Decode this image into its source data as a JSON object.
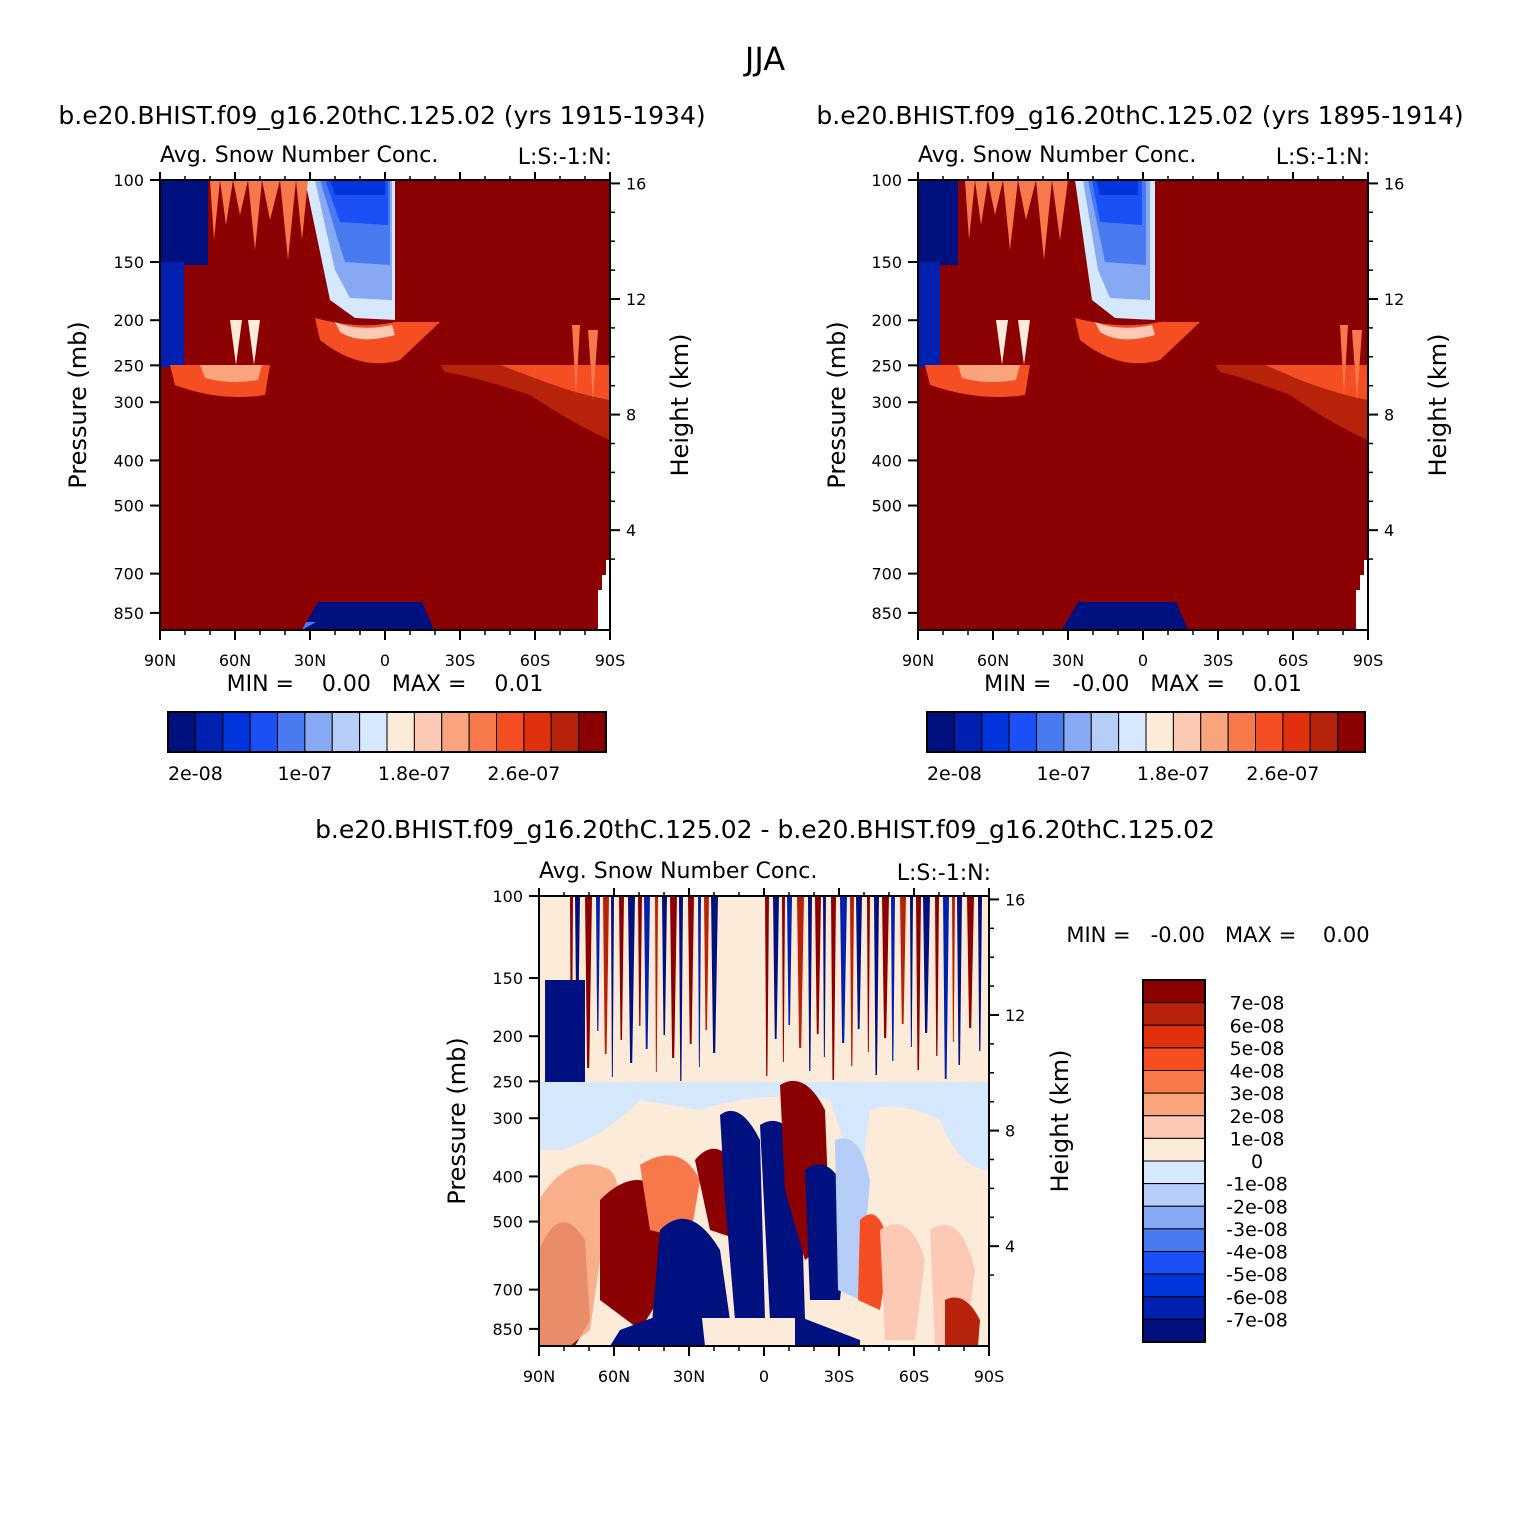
{
  "figure_title": "JJA",
  "colors": {
    "deep_red": "#8b0000",
    "deep_blue": "#00107f",
    "axis": "#000000",
    "background": "#ffffff"
  },
  "chart_data": [
    {
      "type": "heatmap",
      "id": "top-left",
      "case_title": "b.e20.BHIST.f09_g16.20thC.125.02 (yrs 1915-1934)",
      "title": "Avg. Snow Number Conc.",
      "title_right": "L:S:-1:N:",
      "xlabel": "",
      "ylabel": "Pressure (mb)",
      "y2label": "Height (km)",
      "x_ticks": [
        "90N",
        "60N",
        "30N",
        "0",
        "30S",
        "60S",
        "90S"
      ],
      "x_values": [
        90,
        60,
        30,
        0,
        -30,
        -60,
        -90
      ],
      "y_ticks": [
        "100",
        "150",
        "200",
        "250",
        "300",
        "400",
        "500",
        "700",
        "850"
      ],
      "y_values": [
        100,
        150,
        200,
        250,
        300,
        400,
        500,
        700,
        850
      ],
      "ylim": [
        100,
        925
      ],
      "y2_ticks": [
        "4",
        "8",
        "12",
        "16"
      ],
      "y2_values": [
        4,
        8,
        12,
        16
      ],
      "min_max": "MIN =    0.00   MAX =    0.01",
      "colorbar": {
        "orientation": "horizontal",
        "labels": [
          "2e-08",
          "1e-07",
          "1.8e-07",
          "2.6e-07"
        ],
        "label_positions": [
          1,
          5,
          9,
          13
        ],
        "colors": [
          "#00107f",
          "#0020b0",
          "#0035dd",
          "#1a50f5",
          "#4a7af0",
          "#87a8f2",
          "#b6cdf8",
          "#d6e8fb",
          "#fdebd9",
          "#fccab4",
          "#f9a47c",
          "#f7784b",
          "#f44e22",
          "#e0300d",
          "#b7230a",
          "#8b0000"
        ]
      },
      "regions": "Mostly ~2.6e-07+ (deep red) below 250 mb; low values (blue) near 100-250 mb at 90N-75N and 25N-5S; low values near surface 30N-15S."
    },
    {
      "type": "heatmap",
      "id": "top-right",
      "case_title": "b.e20.BHIST.f09_g16.20thC.125.02 (yrs 1895-1914)",
      "title": "Avg. Snow Number Conc.",
      "title_right": "L:S:-1:N:",
      "xlabel": "",
      "ylabel": "Pressure (mb)",
      "y2label": "Height (km)",
      "x_ticks": [
        "90N",
        "60N",
        "30N",
        "0",
        "30S",
        "60S",
        "90S"
      ],
      "x_values": [
        90,
        60,
        30,
        0,
        -30,
        -60,
        -90
      ],
      "y_ticks": [
        "100",
        "150",
        "200",
        "250",
        "300",
        "400",
        "500",
        "700",
        "850"
      ],
      "y_values": [
        100,
        150,
        200,
        250,
        300,
        400,
        500,
        700,
        850
      ],
      "ylim": [
        100,
        925
      ],
      "y2_ticks": [
        "4",
        "8",
        "12",
        "16"
      ],
      "y2_values": [
        4,
        8,
        12,
        16
      ],
      "min_max": "MIN =   -0.00   MAX =    0.01",
      "colorbar": {
        "orientation": "horizontal",
        "labels": [
          "2e-08",
          "1e-07",
          "1.8e-07",
          "2.6e-07"
        ],
        "label_positions": [
          1,
          5,
          9,
          13
        ],
        "colors": [
          "#00107f",
          "#0020b0",
          "#0035dd",
          "#1a50f5",
          "#4a7af0",
          "#87a8f2",
          "#b6cdf8",
          "#d6e8fb",
          "#fdebd9",
          "#fccab4",
          "#f9a47c",
          "#f7784b",
          "#f44e22",
          "#e0300d",
          "#b7230a",
          "#8b0000"
        ]
      },
      "regions": "Nearly identical to left panel."
    },
    {
      "type": "heatmap",
      "id": "bottom-diff",
      "case_title": "b.e20.BHIST.f09_g16.20thC.125.02 - b.e20.BHIST.f09_g16.20thC.125.02",
      "title": "Avg. Snow Number Conc.",
      "title_right": "L:S:-1:N:",
      "xlabel": "",
      "ylabel": "Pressure (mb)",
      "y2label": "Height (km)",
      "x_ticks": [
        "90N",
        "60N",
        "30N",
        "0",
        "30S",
        "60S",
        "90S"
      ],
      "x_values": [
        90,
        60,
        30,
        0,
        -30,
        -60,
        -90
      ],
      "y_ticks": [
        "100",
        "150",
        "200",
        "250",
        "300",
        "400",
        "500",
        "700",
        "850"
      ],
      "y_values": [
        100,
        150,
        200,
        250,
        300,
        400,
        500,
        700,
        850
      ],
      "ylim": [
        100,
        925
      ],
      "y2_ticks": [
        "4",
        "8",
        "12",
        "16"
      ],
      "y2_values": [
        4,
        8,
        12,
        16
      ],
      "min_max": "MIN =   -0.00   MAX =    0.00",
      "colorbar": {
        "orientation": "vertical",
        "labels": [
          "7e-08",
          "6e-08",
          "5e-08",
          "4e-08",
          "3e-08",
          "2e-08",
          "1e-08",
          "0",
          "-1e-08",
          "-2e-08",
          "-3e-08",
          "-4e-08",
          "-5e-08",
          "-6e-08",
          "-7e-08"
        ],
        "colors": [
          "#8b0000",
          "#b7230a",
          "#e0300d",
          "#f44e22",
          "#f7784b",
          "#f9a47c",
          "#fccab4",
          "#fdebd9",
          "#d6e8fb",
          "#b6cdf8",
          "#87a8f2",
          "#4a7af0",
          "#1a50f5",
          "#0035dd",
          "#0020b0",
          "#00107f"
        ]
      },
      "regions": "Alternating strong positive/negative stripes 100-250 mb; mixed anomalies 250-900 mb in tropics; near-zero elsewhere."
    }
  ]
}
